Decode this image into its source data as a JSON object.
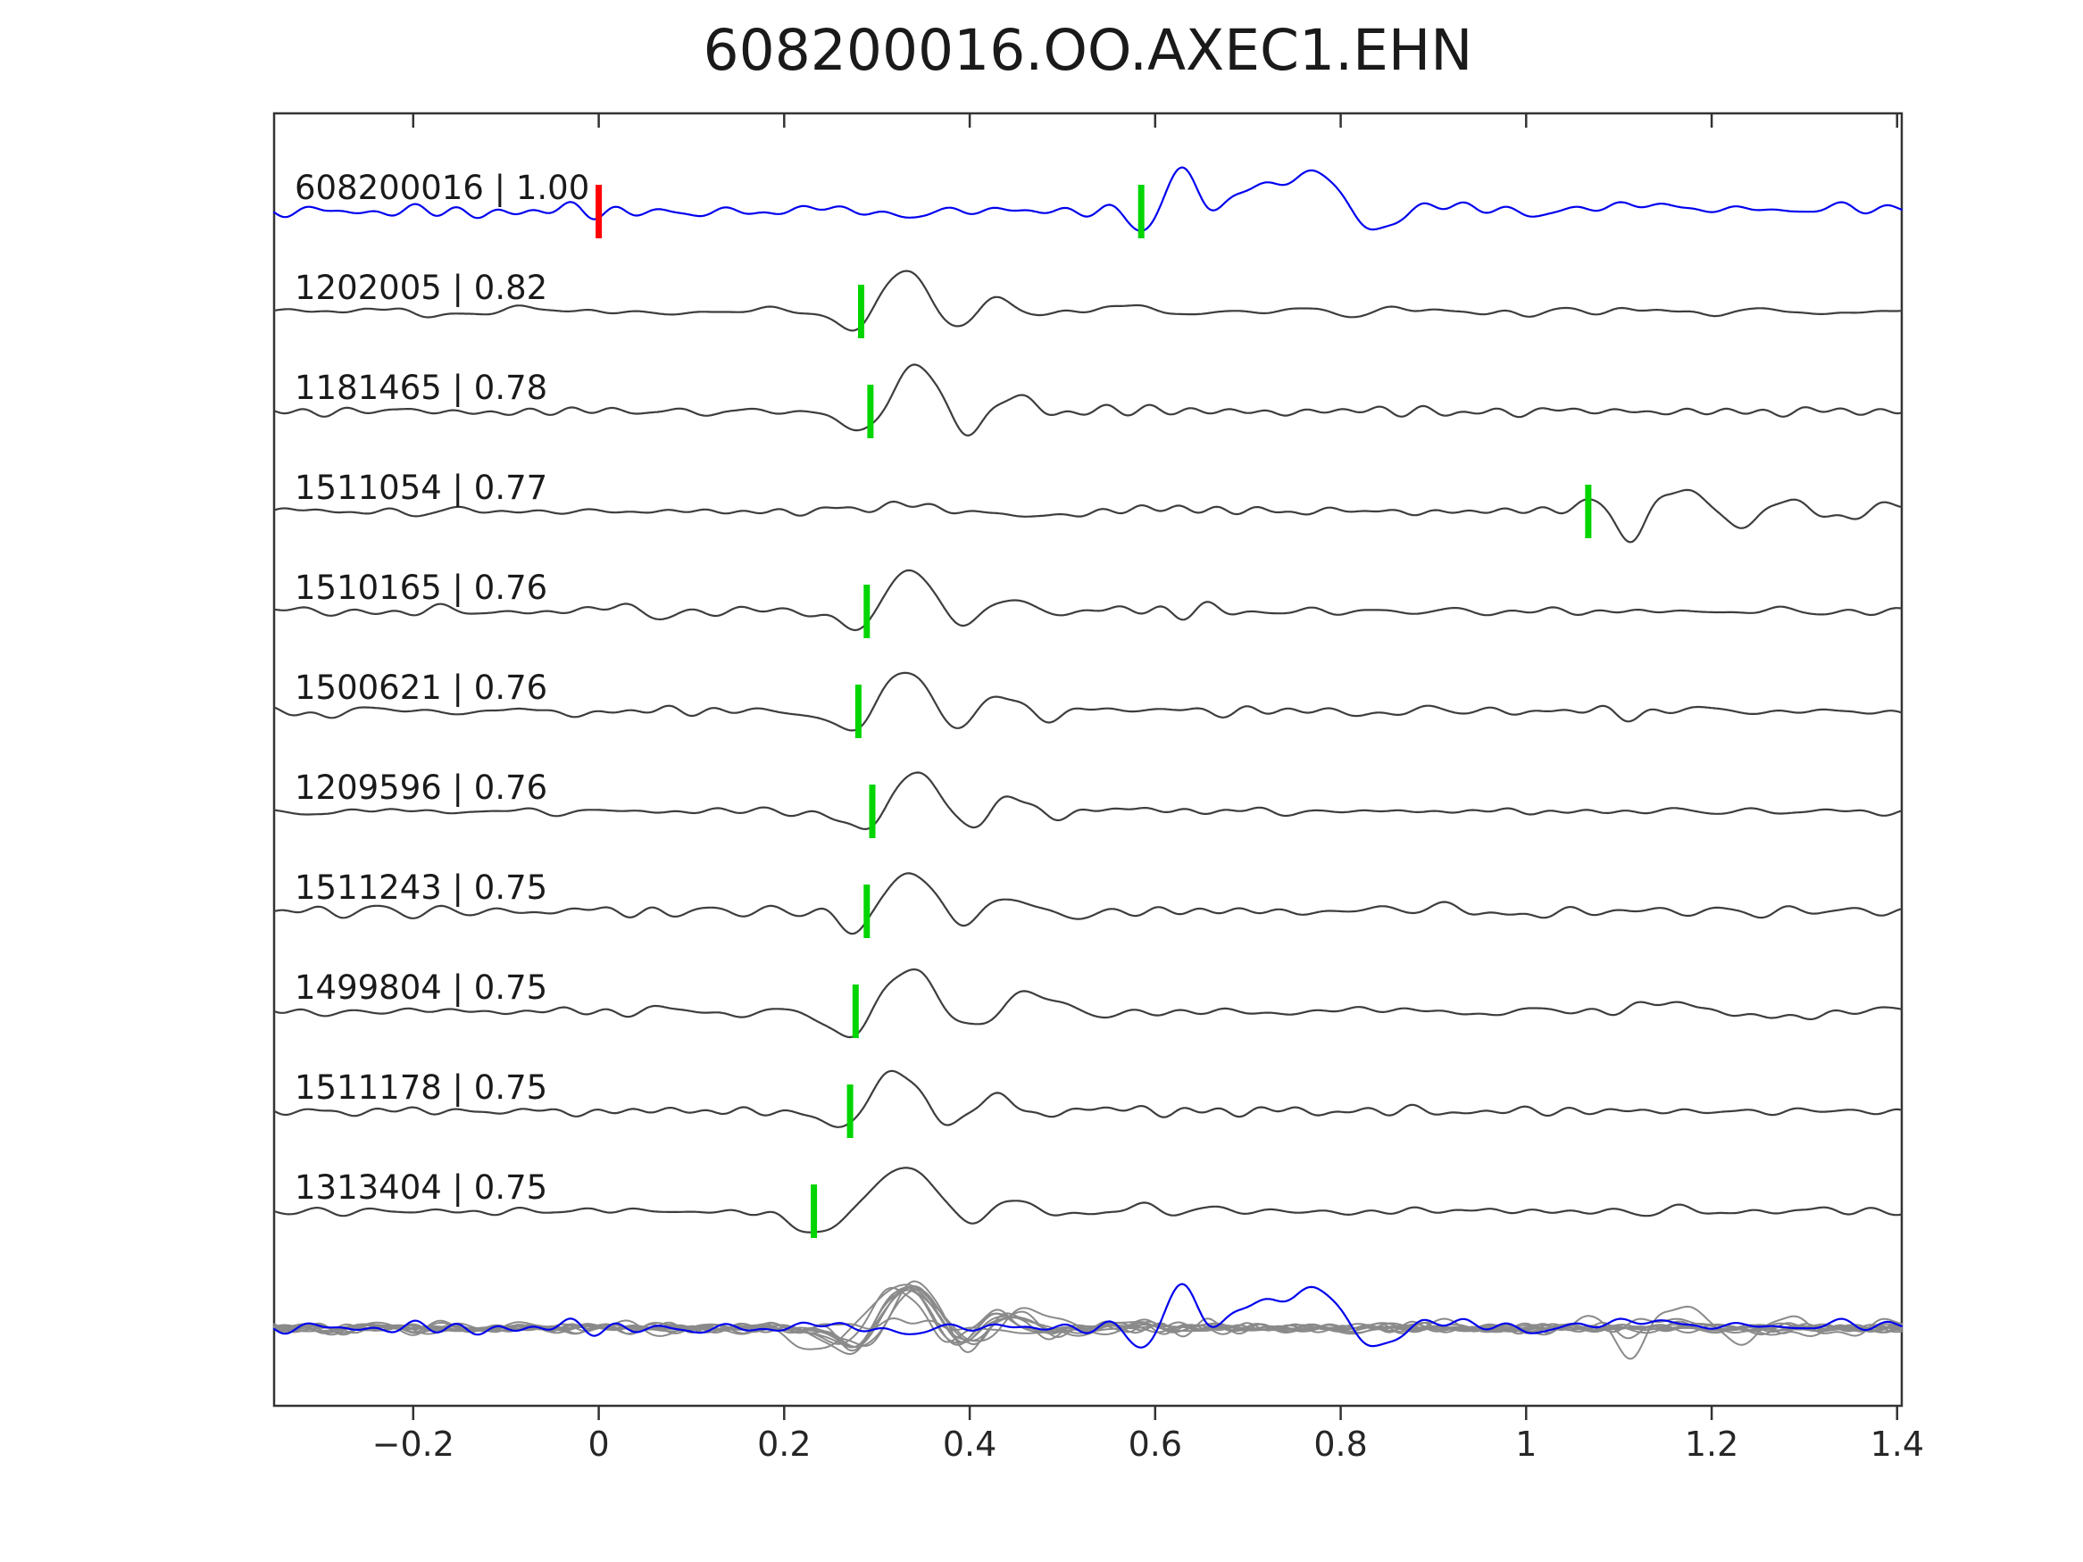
{
  "chart_data": {
    "type": "line",
    "title": "608200016.OO.AXEC1.EHN",
    "xlim": [
      -0.35,
      1.405
    ],
    "xticks": [
      -0.2,
      0,
      0.2,
      0.4,
      0.6,
      0.8,
      1,
      1.2,
      1.4
    ],
    "xtick_labels": [
      "−0.2",
      "0",
      "0.2",
      "0.4",
      "0.6",
      "0.8",
      "1",
      "1.2",
      "1.4"
    ],
    "ylabel": "",
    "xlabel": "",
    "grid": false,
    "legend": "none",
    "colors": {
      "reference": "#0000ee",
      "template": "#3d3d3d",
      "overlay_gray": "#8a8a8a",
      "pick_green": "#00d500",
      "pick_red": "#ff0000",
      "frame": "#333333",
      "text": "#1a1a1a"
    },
    "traces": [
      {
        "id": "608200016",
        "cc": "1.00",
        "label": "608200016 | 1.00",
        "role": "reference",
        "color_key": "reference",
        "seed": 101,
        "amp": 52,
        "noise_amp": 9,
        "picks": [
          {
            "t": 0.0,
            "color_key": "pick_red"
          },
          {
            "t": 0.585,
            "color_key": "pick_green"
          }
        ],
        "events": [
          [
            0.595,
            -0.5,
            0.016
          ],
          [
            0.628,
            1.0,
            0.02
          ],
          [
            0.663,
            -0.28,
            0.016
          ],
          [
            0.702,
            0.42,
            0.024
          ],
          [
            0.768,
            0.88,
            0.03
          ],
          [
            0.833,
            -0.42,
            0.027
          ],
          [
            0.897,
            0.16,
            0.028
          ],
          [
            1.065,
            0.1,
            0.028
          ],
          [
            1.155,
            0.1,
            0.026
          ],
          [
            1.24,
            0.09,
            0.03
          ],
          [
            1.33,
            0.08,
            0.028
          ]
        ]
      },
      {
        "id": "1202005",
        "cc": "0.82",
        "label": "1202005 | 0.82",
        "role": "match",
        "color_key": "template",
        "seed": 102,
        "amp": 46,
        "noise_amp": 6.5,
        "picks": [
          {
            "t": 0.283,
            "color_key": "pick_green"
          }
        ],
        "events": [
          [
            0.276,
            -0.52,
            0.02
          ],
          [
            0.33,
            1.0,
            0.026
          ],
          [
            0.386,
            -0.5,
            0.021
          ],
          [
            0.433,
            0.4,
            0.022
          ],
          [
            0.482,
            -0.16,
            0.024
          ],
          [
            0.545,
            0.1,
            0.032
          ]
        ]
      },
      {
        "id": "1181465",
        "cc": "0.78",
        "label": "1181465 | 0.78",
        "role": "match",
        "color_key": "template",
        "seed": 103,
        "amp": 50,
        "noise_amp": 6.5,
        "picks": [
          {
            "t": 0.293,
            "color_key": "pick_green"
          }
        ],
        "events": [
          [
            0.288,
            -0.55,
            0.021
          ],
          [
            0.341,
            1.0,
            0.026
          ],
          [
            0.398,
            -0.52,
            0.021
          ],
          [
            0.447,
            0.42,
            0.023
          ],
          [
            0.5,
            -0.15,
            0.025
          ],
          [
            0.565,
            0.08,
            0.03
          ]
        ]
      },
      {
        "id": "1511054",
        "cc": "0.77",
        "label": "1511054 | 0.77",
        "role": "match",
        "color_key": "template",
        "seed": 104,
        "amp": 50,
        "noise_amp": 6,
        "picks": [
          {
            "t": 1.067,
            "color_key": "pick_green"
          }
        ],
        "events": [
          [
            0.33,
            0.16,
            0.035
          ],
          [
            0.47,
            -0.1,
            0.045
          ],
          [
            0.625,
            0.08,
            0.04
          ],
          [
            1.085,
            0.45,
            0.022
          ],
          [
            1.11,
            -1.0,
            0.017
          ],
          [
            1.168,
            0.55,
            0.028
          ],
          [
            1.228,
            -0.38,
            0.026
          ],
          [
            1.285,
            0.3,
            0.028
          ],
          [
            1.336,
            -0.22,
            0.026
          ],
          [
            1.385,
            0.12,
            0.025
          ]
        ]
      },
      {
        "id": "1510165",
        "cc": "0.76",
        "label": "1510165 | 0.76",
        "role": "match",
        "color_key": "template",
        "seed": 105,
        "amp": 47,
        "noise_amp": 6.5,
        "picks": [
          {
            "t": 0.289,
            "color_key": "pick_green"
          }
        ],
        "events": [
          [
            0.02,
            0.1,
            0.02
          ],
          [
            0.062,
            -0.08,
            0.02
          ],
          [
            0.284,
            -0.5,
            0.021
          ],
          [
            0.336,
            1.0,
            0.027
          ],
          [
            0.392,
            -0.48,
            0.022
          ],
          [
            0.441,
            0.4,
            0.024
          ],
          [
            0.492,
            -0.14,
            0.026
          ],
          [
            0.555,
            0.08,
            0.03
          ]
        ]
      },
      {
        "id": "1500621",
        "cc": "0.76",
        "label": "1500621 | 0.76",
        "role": "match",
        "color_key": "template",
        "seed": 106,
        "amp": 47,
        "noise_amp": 7,
        "picks": [
          {
            "t": 0.28,
            "color_key": "pick_green"
          }
        ],
        "events": [
          [
            0.274,
            -0.55,
            0.022
          ],
          [
            0.328,
            1.0,
            0.026
          ],
          [
            0.384,
            -0.5,
            0.021
          ],
          [
            0.431,
            0.42,
            0.022
          ],
          [
            0.48,
            -0.16,
            0.024
          ],
          [
            0.543,
            0.09,
            0.03
          ]
        ]
      },
      {
        "id": "1209596",
        "cc": "0.76",
        "label": "1209596 | 0.76",
        "role": "match",
        "color_key": "template",
        "seed": 107,
        "amp": 46,
        "noise_amp": 6,
        "picks": [
          {
            "t": 0.295,
            "color_key": "pick_green"
          }
        ],
        "events": [
          [
            0.29,
            -0.55,
            0.022
          ],
          [
            0.343,
            1.0,
            0.026
          ],
          [
            0.399,
            -0.5,
            0.021
          ],
          [
            0.446,
            0.38,
            0.022
          ],
          [
            0.496,
            -0.14,
            0.025
          ],
          [
            0.558,
            0.08,
            0.03
          ]
        ]
      },
      {
        "id": "1511243",
        "cc": "0.75",
        "label": "1511243 | 0.75",
        "role": "match",
        "color_key": "template",
        "seed": 108,
        "amp": 47,
        "noise_amp": 6.5,
        "picks": [
          {
            "t": 0.289,
            "color_key": "pick_green"
          }
        ],
        "events": [
          [
            0.283,
            -0.5,
            0.021
          ],
          [
            0.336,
            1.0,
            0.027
          ],
          [
            0.391,
            -0.46,
            0.022
          ],
          [
            0.441,
            0.4,
            0.024
          ],
          [
            0.492,
            -0.15,
            0.026
          ],
          [
            0.902,
            0.12,
            0.035
          ],
          [
            0.972,
            -0.1,
            0.035
          ]
        ]
      },
      {
        "id": "1499804",
        "cc": "0.75",
        "label": "1499804 | 0.75",
        "role": "match",
        "color_key": "template",
        "seed": 109,
        "amp": 48,
        "noise_amp": 7,
        "picks": [
          {
            "t": 0.277,
            "color_key": "pick_green"
          }
        ],
        "events": [
          [
            0.27,
            -0.65,
            0.026
          ],
          [
            0.333,
            1.0,
            0.03
          ],
          [
            0.4,
            -0.5,
            0.024
          ],
          [
            0.466,
            0.45,
            0.032
          ],
          [
            0.548,
            -0.15,
            0.03
          ],
          [
            1.155,
            0.14,
            0.04
          ],
          [
            1.272,
            -0.12,
            0.04
          ]
        ]
      },
      {
        "id": "1511178",
        "cc": "0.75",
        "label": "1511178 | 0.75",
        "role": "match",
        "color_key": "template",
        "seed": 110,
        "amp": 48,
        "noise_amp": 6,
        "picks": [
          {
            "t": 0.271,
            "color_key": "pick_green"
          }
        ],
        "events": [
          [
            0.265,
            -0.5,
            0.021
          ],
          [
            0.321,
            1.0,
            0.027
          ],
          [
            0.379,
            -0.48,
            0.022
          ],
          [
            0.429,
            0.42,
            0.024
          ],
          [
            0.479,
            -0.15,
            0.025
          ],
          [
            0.542,
            0.08,
            0.03
          ]
        ]
      },
      {
        "id": "1313404",
        "cc": "0.75",
        "label": "1313404 | 0.75",
        "role": "match",
        "color_key": "template",
        "seed": 111,
        "amp": 50,
        "noise_amp": 6,
        "picks": [
          {
            "t": 0.232,
            "color_key": "pick_green"
          }
        ],
        "events": [
          [
            0.236,
            -0.52,
            0.024
          ],
          [
            0.334,
            1.0,
            0.032
          ],
          [
            0.399,
            -0.45,
            0.021
          ],
          [
            0.448,
            0.35,
            0.022
          ],
          [
            0.502,
            -0.14,
            0.026
          ],
          [
            0.572,
            0.08,
            0.03
          ]
        ]
      }
    ],
    "overlay": {
      "description": "all matched traces overlaid in gray with reference trace in blue, bottom row"
    }
  }
}
